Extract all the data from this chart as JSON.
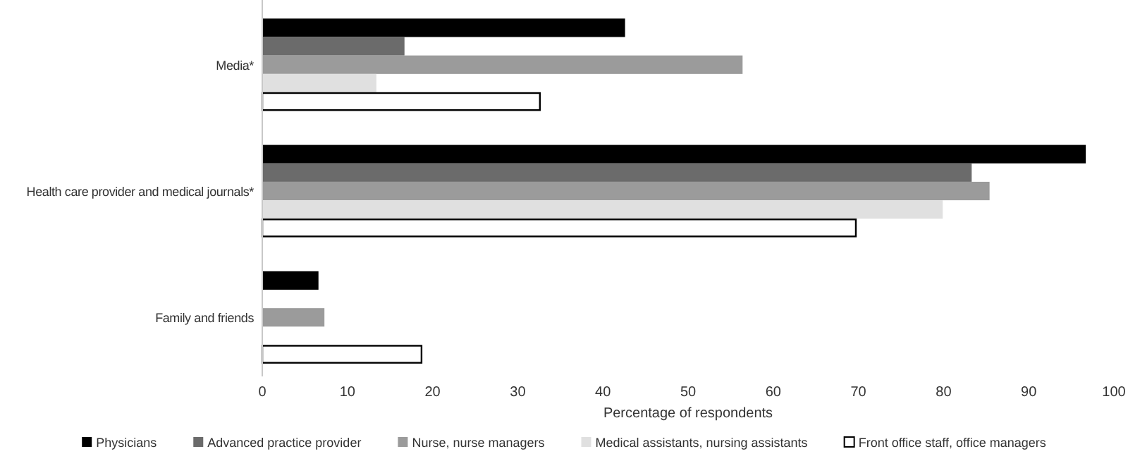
{
  "chart_data": {
    "type": "bar",
    "orientation": "horizontal",
    "xlabel": "Percentage of respondents",
    "categories": [
      "Media*",
      "Health care provider and medical journals*",
      "Family and friends"
    ],
    "series": [
      {
        "name": "Physicians",
        "color": "#000000",
        "values": [
          42.6,
          96.7,
          6.6
        ]
      },
      {
        "name": "Advanced practice provider",
        "color": "#6b6b6b",
        "values": [
          16.7,
          83.3,
          0
        ]
      },
      {
        "name": "Nurse, nurse managers",
        "color": "#9b9b9b",
        "values": [
          56.4,
          85.4,
          7.3
        ]
      },
      {
        "name": "Medical assistants, nursing assistants",
        "color": "#e0e0e0",
        "values": [
          13.4,
          79.9,
          0
        ]
      },
      {
        "name": "Front office staff, office managers",
        "color": "#ffffff",
        "values": [
          32.6,
          69.7,
          18.7
        ]
      }
    ],
    "xlim": [
      0,
      100
    ],
    "xticks": [
      0,
      10,
      20,
      30,
      40,
      50,
      60,
      70,
      80,
      90,
      100
    ],
    "legend": "bottom",
    "grid": false
  }
}
